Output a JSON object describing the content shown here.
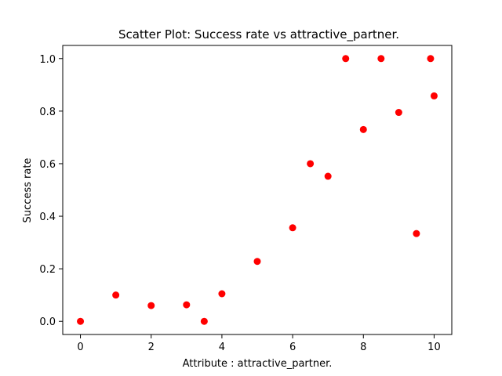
{
  "chart_data": {
    "type": "scatter",
    "title": "Scatter Plot: Success rate vs attractive_partner.",
    "xlabel": "Attribute : attractive_partner.",
    "ylabel": "Success rate",
    "xlim": [
      -0.5,
      10.5
    ],
    "ylim": [
      -0.05,
      1.05
    ],
    "xticks": [
      0,
      2,
      4,
      6,
      8,
      10
    ],
    "xtick_labels": [
      "0",
      "2",
      "4",
      "6",
      "8",
      "10"
    ],
    "yticks": [
      0.0,
      0.2,
      0.4,
      0.6,
      0.8,
      1.0
    ],
    "ytick_labels": [
      "0.0",
      "0.2",
      "0.4",
      "0.6",
      "0.8",
      "1.0"
    ],
    "grid": false,
    "marker_color": "#ff0000",
    "series": [
      {
        "points": [
          {
            "x": 0,
            "y": 0.0
          },
          {
            "x": 1,
            "y": 0.1
          },
          {
            "x": 2,
            "y": 0.06
          },
          {
            "x": 3,
            "y": 0.063
          },
          {
            "x": 3.5,
            "y": 0.0
          },
          {
            "x": 4,
            "y": 0.105
          },
          {
            "x": 5,
            "y": 0.228
          },
          {
            "x": 6,
            "y": 0.356
          },
          {
            "x": 6.5,
            "y": 0.6
          },
          {
            "x": 7,
            "y": 0.552
          },
          {
            "x": 7.5,
            "y": 1.0
          },
          {
            "x": 8,
            "y": 0.73
          },
          {
            "x": 8.5,
            "y": 1.0
          },
          {
            "x": 9,
            "y": 0.795
          },
          {
            "x": 9.5,
            "y": 0.334
          },
          {
            "x": 9.9,
            "y": 1.0
          },
          {
            "x": 10,
            "y": 0.858
          }
        ]
      }
    ]
  }
}
